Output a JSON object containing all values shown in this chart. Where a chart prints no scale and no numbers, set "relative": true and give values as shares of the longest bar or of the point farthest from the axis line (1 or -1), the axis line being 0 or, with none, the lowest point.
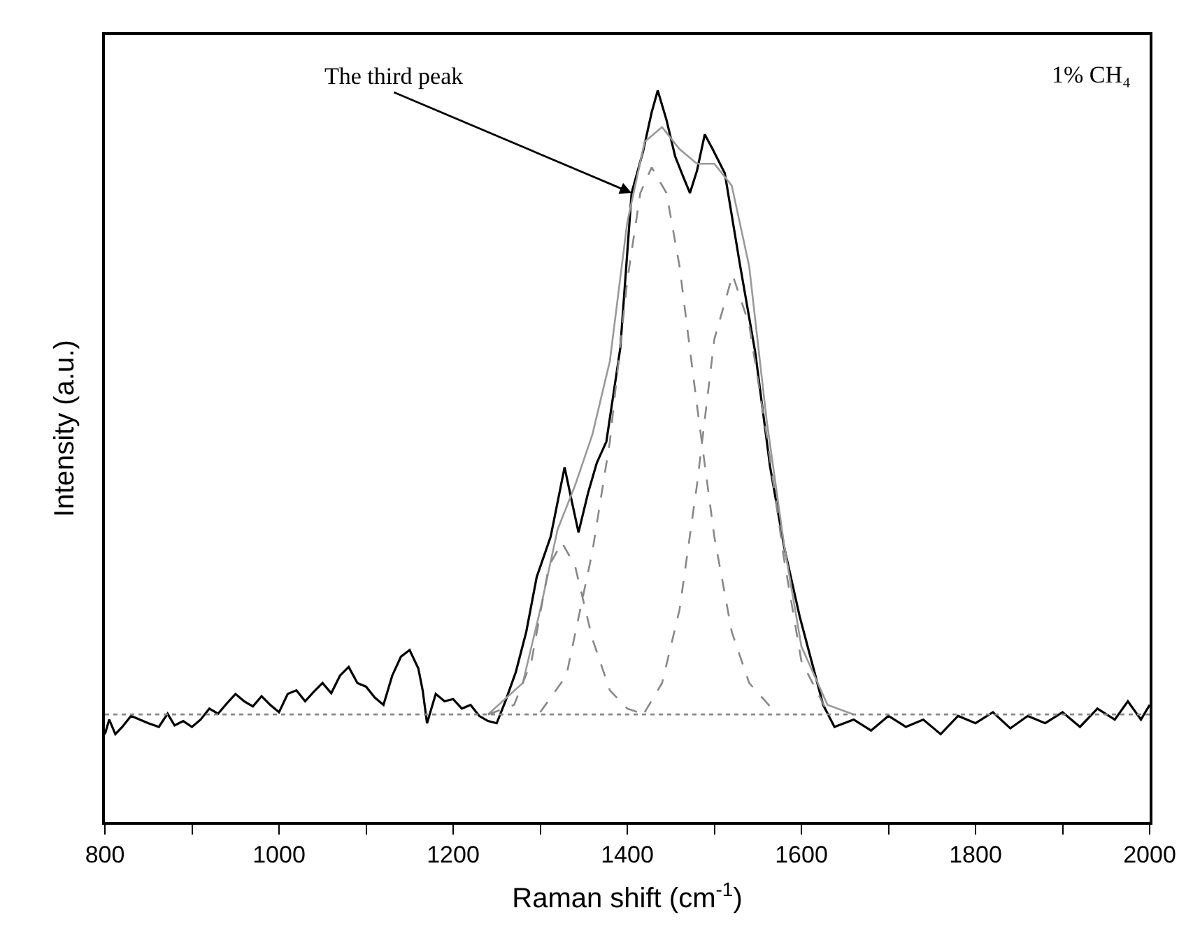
{
  "chart_data": {
    "type": "line",
    "xlabel": "Raman shift (cm$^{-1}$)",
    "ylabel": "Intensity (a.u.)",
    "relative": true,
    "marker": "none",
    "xlim": [
      800,
      2000
    ],
    "xticks": [
      800,
      {
        "value": 900,
        "label": null
      },
      1000,
      {
        "value": 1100,
        "label": null
      },
      1200,
      {
        "value": 1300,
        "label": null
      },
      1400,
      {
        "value": 1500,
        "label": null
      },
      1600,
      {
        "value": 1700,
        "label": null
      },
      1800,
      {
        "value": 1900,
        "label": null
      },
      2000
    ],
    "annotations": [
      {
        "text": "The third peak",
        "x": 1405,
        "y": 0.86
      },
      "1% CH₄"
    ],
    "series": [
      {
        "color": "#000000",
        "line_style": "solid",
        "x": [
          800,
          805,
          812,
          820,
          830,
          840,
          850,
          862,
          872,
          880,
          890,
          900,
          910,
          920,
          930,
          940,
          950,
          960,
          970,
          980,
          990,
          1000,
          1010,
          1020,
          1030,
          1040,
          1050,
          1060,
          1070,
          1080,
          1090,
          1100,
          1110,
          1120,
          1130,
          1140,
          1150,
          1160,
          1165,
          1170,
          1180,
          1190,
          1200,
          1210,
          1220,
          1230,
          1240,
          1250,
          1260,
          1272,
          1284,
          1296,
          1312,
          1328,
          1336,
          1344,
          1355,
          1365,
          1376,
          1392,
          1405,
          1418,
          1428,
          1435,
          1445,
          1455,
          1465,
          1472,
          1480,
          1489,
          1498,
          1512,
          1529,
          1547,
          1564,
          1580,
          1598,
          1615,
          1625,
          1638,
          1660,
          1680,
          1700,
          1720,
          1740,
          1760,
          1780,
          1800,
          1820,
          1840,
          1860,
          1880,
          1900,
          1920,
          1940,
          1960,
          1975,
          1990,
          2000
        ],
        "values": [
          0.12,
          0.14,
          0.12,
          0.13,
          0.145,
          0.14,
          0.135,
          0.13,
          0.148,
          0.132,
          0.138,
          0.13,
          0.14,
          0.155,
          0.148,
          0.162,
          0.175,
          0.165,
          0.158,
          0.172,
          0.16,
          0.15,
          0.175,
          0.18,
          0.165,
          0.178,
          0.19,
          0.176,
          0.2,
          0.212,
          0.19,
          0.185,
          0.17,
          0.16,
          0.2,
          0.226,
          0.235,
          0.21,
          0.18,
          0.135,
          0.175,
          0.165,
          0.168,
          0.155,
          0.16,
          0.145,
          0.138,
          0.135,
          0.165,
          0.205,
          0.26,
          0.335,
          0.39,
          0.485,
          0.44,
          0.396,
          0.45,
          0.491,
          0.52,
          0.648,
          0.86,
          0.916,
          0.97,
          1.0,
          0.96,
          0.91,
          0.88,
          0.86,
          0.89,
          0.94,
          0.92,
          0.887,
          0.765,
          0.642,
          0.486,
          0.377,
          0.281,
          0.205,
          0.16,
          0.13,
          0.14,
          0.125,
          0.145,
          0.13,
          0.14,
          0.12,
          0.145,
          0.135,
          0.15,
          0.128,
          0.145,
          0.135,
          0.15,
          0.13,
          0.155,
          0.14,
          0.165,
          0.14,
          0.16
        ]
      },
      {
        "color": "#999999",
        "line_style": "solid",
        "x": [
          1240,
          1280,
          1300,
          1320,
          1340,
          1360,
          1380,
          1400,
          1420,
          1440,
          1460,
          1480,
          1500,
          1520,
          1540,
          1560,
          1580,
          1600,
          1630,
          1660
        ],
        "values": [
          0.147,
          0.19,
          0.29,
          0.4,
          0.46,
          0.53,
          0.63,
          0.82,
          0.93,
          0.95,
          0.92,
          0.9,
          0.9,
          0.87,
          0.76,
          0.55,
          0.38,
          0.24,
          0.16,
          0.147
        ]
      },
      {
        "color": "#888888",
        "line_style": "dotted",
        "x": [
          800,
          2000
        ],
        "values": [
          0.147,
          0.147
        ]
      },
      {
        "color": "#888888",
        "line_style": "dashed",
        "x": [
          1240,
          1270,
          1290,
          1310,
          1325,
          1340,
          1360,
          1380,
          1400,
          1420
        ],
        "values": [
          0.147,
          0.16,
          0.22,
          0.35,
          0.382,
          0.35,
          0.25,
          0.18,
          0.155,
          0.147
        ]
      },
      {
        "color": "#888888",
        "line_style": "dashed",
        "x": [
          1300,
          1330,
          1360,
          1380,
          1400,
          1415,
          1428,
          1445,
          1460,
          1480,
          1500,
          1520,
          1540,
          1570
        ],
        "values": [
          0.15,
          0.2,
          0.37,
          0.52,
          0.74,
          0.86,
          0.895,
          0.86,
          0.76,
          0.57,
          0.39,
          0.26,
          0.19,
          0.15
        ]
      },
      {
        "color": "#888888",
        "line_style": "dashed",
        "x": [
          1420,
          1440,
          1460,
          1480,
          1500,
          1521,
          1540,
          1560,
          1580,
          1600,
          1630
        ],
        "values": [
          0.15,
          0.19,
          0.29,
          0.46,
          0.66,
          0.748,
          0.68,
          0.53,
          0.36,
          0.22,
          0.15
        ]
      }
    ]
  }
}
